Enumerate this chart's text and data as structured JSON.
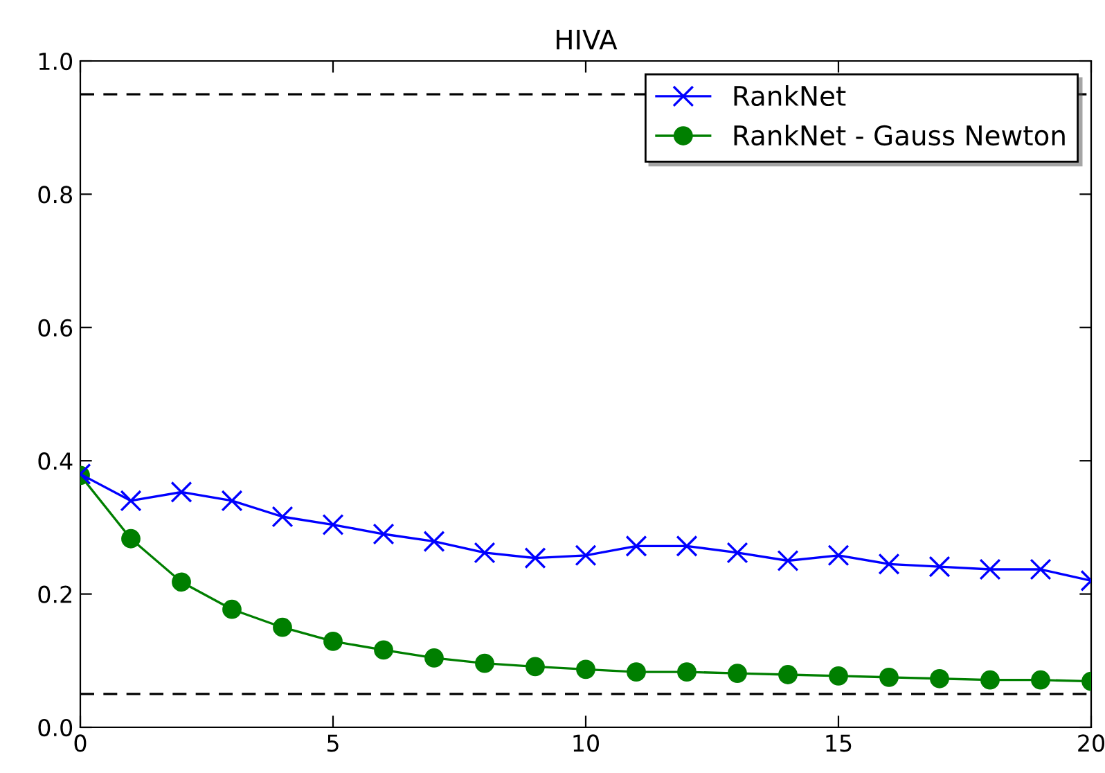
{
  "chart_data": {
    "type": "line",
    "title": "HIVA",
    "x": [
      0,
      1,
      2,
      3,
      4,
      5,
      6,
      7,
      8,
      9,
      10,
      11,
      12,
      13,
      14,
      15,
      16,
      17,
      18,
      19,
      20
    ],
    "series": [
      {
        "name": "RankNet",
        "color": "#0000ff",
        "marker": "cross",
        "values": [
          0.38,
          0.34,
          0.353,
          0.34,
          0.316,
          0.304,
          0.29,
          0.279,
          0.262,
          0.254,
          0.258,
          0.272,
          0.272,
          0.262,
          0.25,
          0.258,
          0.245,
          0.241,
          0.237,
          0.237,
          0.22
        ]
      },
      {
        "name": "RankNet - Gauss Newton",
        "color": "#007f00",
        "marker": "circle",
        "values": [
          0.378,
          0.283,
          0.218,
          0.177,
          0.15,
          0.129,
          0.116,
          0.104,
          0.096,
          0.091,
          0.087,
          0.083,
          0.083,
          0.081,
          0.079,
          0.077,
          0.075,
          0.073,
          0.071,
          0.071,
          0.069
        ]
      }
    ],
    "xlim": [
      0,
      20
    ],
    "xticks": [
      0,
      5,
      10,
      15,
      20
    ],
    "ylim": [
      0,
      1.0
    ],
    "yticks": [
      {
        "value": 0,
        "label": "0.0"
      },
      {
        "value": 0.2,
        "label": "0.2"
      },
      {
        "value": 0.4,
        "label": "0.4"
      },
      {
        "value": 0.6,
        "label": "0.6"
      },
      {
        "value": 0.8,
        "label": "0.8"
      },
      {
        "value": 1.0,
        "label": "1.0"
      }
    ],
    "ref_lines": [
      {
        "axis": "y",
        "value": 0.95,
        "color": "#000000",
        "line_style": "dashed"
      },
      {
        "axis": "y",
        "value": 0.05,
        "color": "#000000",
        "line_style": "dashed"
      }
    ],
    "legend": "top right",
    "grid": false
  }
}
